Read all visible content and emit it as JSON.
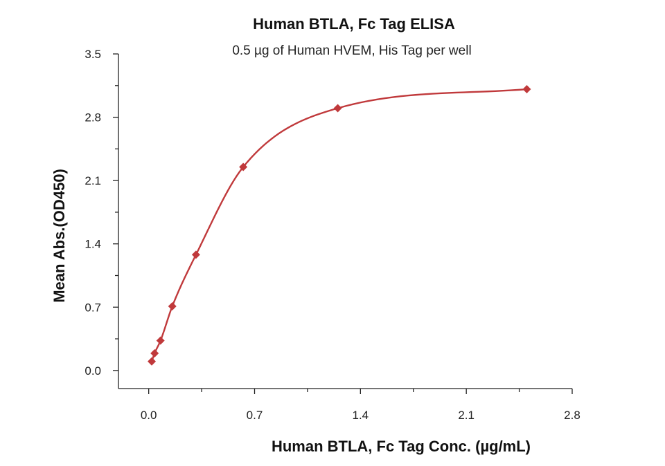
{
  "chart_data": {
    "type": "scatter",
    "title": "Human BTLA, Fc Tag ELISA",
    "subtitle": "0.5 µg of Human HVEM, His Tag per well",
    "xlabel": "Human BTLA, Fc Tag Conc. (µg/mL)",
    "ylabel": "Mean Abs.(OD450)",
    "xlim": [
      -0.2,
      2.8
    ],
    "ylim": [
      -0.2,
      3.5
    ],
    "xticks": [
      0.0,
      0.7,
      1.4,
      2.1,
      2.8
    ],
    "xtick_labels": [
      "0.0",
      "0.7",
      "1.4",
      "2.1",
      "2.8"
    ],
    "yticks": [
      0.0,
      0.7,
      1.4,
      2.1,
      2.8,
      3.5
    ],
    "ytick_labels": [
      "0.0",
      "0.7",
      "1.4",
      "2.1",
      "2.8",
      "3.5"
    ],
    "grid": false,
    "color": "#c0393b",
    "series": [
      {
        "marker": "diamond",
        "x": [
          0.02,
          0.039,
          0.078,
          0.156,
          0.3125,
          0.625,
          1.25,
          2.5
        ],
        "y": [
          0.1,
          0.19,
          0.33,
          0.71,
          1.28,
          2.25,
          2.9,
          3.11
        ],
        "fit_curve": true
      }
    ]
  }
}
